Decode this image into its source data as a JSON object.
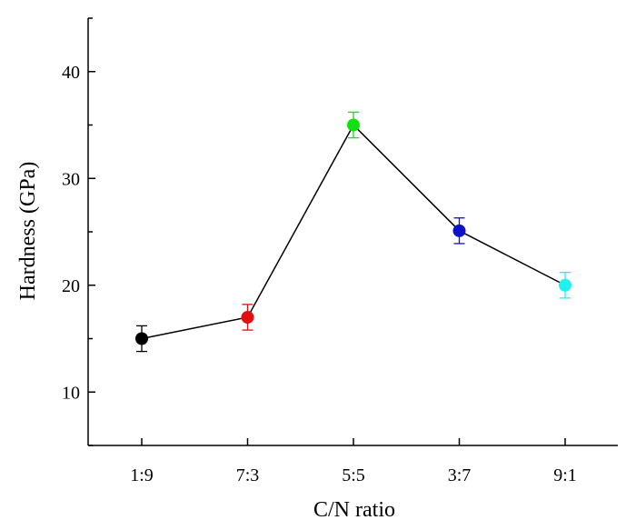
{
  "chart_data": {
    "type": "scatter",
    "title": "",
    "xlabel": "C/N ratio",
    "ylabel": "Hardness (GPa)",
    "categories": [
      "1:9",
      "7:3",
      "5:5",
      "3:7",
      "9:1"
    ],
    "values": [
      15.0,
      17.0,
      35.0,
      25.1,
      20.0
    ],
    "errors": [
      1.2,
      1.2,
      1.2,
      1.2,
      1.2
    ],
    "colors": [
      "#000000",
      "#e01010",
      "#10e010",
      "#1010cc",
      "#20f0f0"
    ],
    "ylim": [
      5,
      45
    ],
    "yticks": [
      10,
      20,
      30,
      40
    ],
    "connecting_line": true,
    "grid": false,
    "legend": "none"
  }
}
